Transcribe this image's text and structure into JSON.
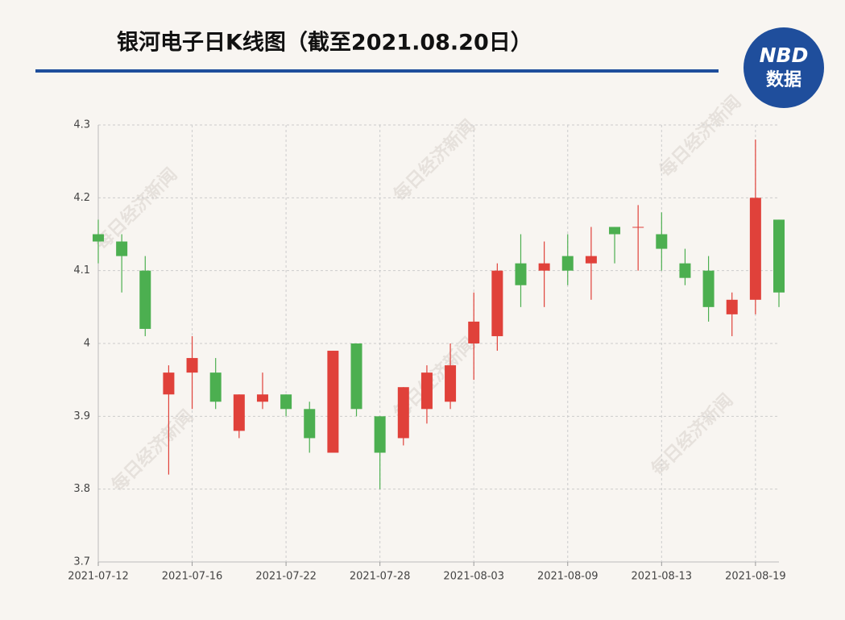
{
  "chart_data": {
    "type": "candlestick",
    "title": "银河电子日K线图（截至2021.08.20日）",
    "logo": {
      "top": "NBD",
      "bottom": "数据"
    },
    "watermark": "每日经济新闻",
    "categories": [
      "2021-07-12",
      null,
      null,
      null,
      "2021-07-16",
      null,
      null,
      null,
      "2021-07-22",
      null,
      null,
      null,
      "2021-07-28",
      null,
      null,
      null,
      "2021-08-03",
      null,
      null,
      null,
      "2021-08-09",
      null,
      null,
      null,
      "2021-08-13",
      null,
      null,
      null,
      "2021-08-19",
      null
    ],
    "series": [
      {
        "up_color": "#e0413a",
        "down_color": "#4caf50",
        "open": [
          4.15,
          4.14,
          4.1,
          3.93,
          3.96,
          3.96,
          3.88,
          3.92,
          3.93,
          3.91,
          3.85,
          4.0,
          3.9,
          3.87,
          3.91,
          3.92,
          4.0,
          4.01,
          4.11,
          4.1,
          4.12,
          4.11,
          4.16,
          4.16,
          4.15,
          4.11,
          4.1,
          4.04,
          4.06,
          4.17
        ],
        "high": [
          4.17,
          4.15,
          4.12,
          3.97,
          4.01,
          3.98,
          3.93,
          3.96,
          3.93,
          3.92,
          3.99,
          4.0,
          3.9,
          3.94,
          3.97,
          4.0,
          4.07,
          4.11,
          4.15,
          4.14,
          4.15,
          4.16,
          4.16,
          4.19,
          4.18,
          4.13,
          4.12,
          4.07,
          4.28,
          4.17
        ],
        "low": [
          4.11,
          4.07,
          4.01,
          3.82,
          3.91,
          3.91,
          3.87,
          3.91,
          3.9,
          3.85,
          3.85,
          3.9,
          3.8,
          3.86,
          3.89,
          3.91,
          3.95,
          3.99,
          4.05,
          4.05,
          4.08,
          4.06,
          4.11,
          4.1,
          4.1,
          4.08,
          4.03,
          4.01,
          4.04,
          4.05
        ],
        "close": [
          4.14,
          4.12,
          4.02,
          3.96,
          3.98,
          3.92,
          3.93,
          3.93,
          3.91,
          3.87,
          3.99,
          3.91,
          3.85,
          3.94,
          3.96,
          3.97,
          4.03,
          4.1,
          4.08,
          4.11,
          4.1,
          4.12,
          4.15,
          4.16,
          4.13,
          4.09,
          4.05,
          4.06,
          4.2,
          4.07
        ]
      }
    ],
    "ylim": [
      3.7,
      4.3
    ],
    "yticks": [
      3.7,
      3.8,
      3.9,
      4,
      4.1,
      4.2,
      4.3
    ],
    "grid": true
  }
}
